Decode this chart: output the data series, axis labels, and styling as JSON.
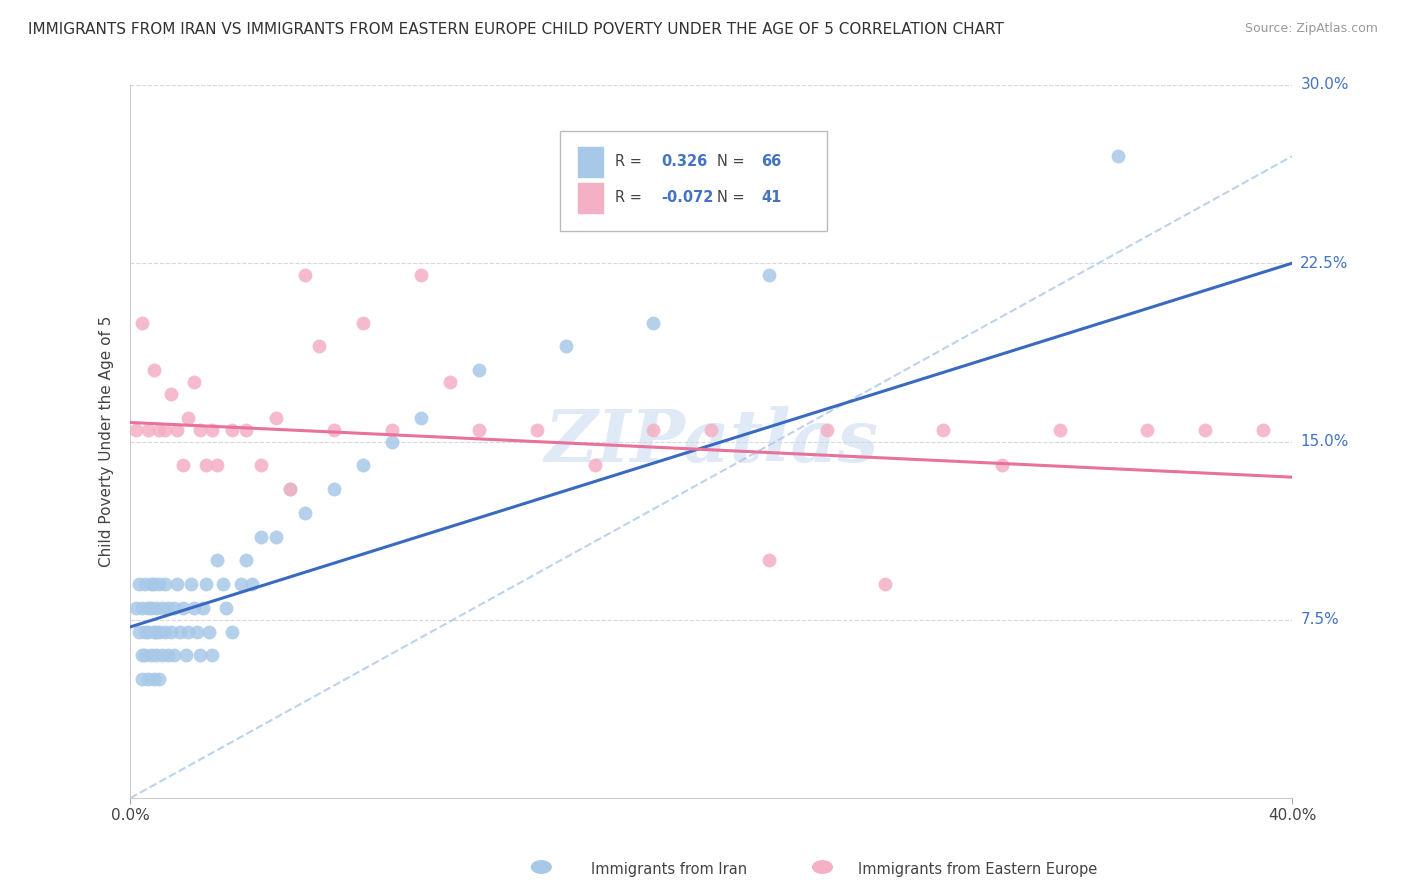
{
  "title": "IMMIGRANTS FROM IRAN VS IMMIGRANTS FROM EASTERN EUROPE CHILD POVERTY UNDER THE AGE OF 5 CORRELATION CHART",
  "source": "Source: ZipAtlas.com",
  "ylabel": "Child Poverty Under the Age of 5",
  "xlabel_iran": "Immigrants from Iran",
  "xlabel_ee": "Immigrants from Eastern Europe",
  "xmin": 0.0,
  "xmax": 0.4,
  "ymin": 0.0,
  "ymax": 0.3,
  "yticks": [
    0.0,
    0.075,
    0.15,
    0.225,
    0.3
  ],
  "ytick_labels": [
    "",
    "7.5%",
    "15.0%",
    "22.5%",
    "30.0%"
  ],
  "xtick_labels": [
    "0.0%",
    "40.0%"
  ],
  "R_iran": 0.326,
  "N_iran": 66,
  "R_ee": -0.072,
  "N_ee": 41,
  "color_iran": "#a8c8e8",
  "color_ee": "#f4b0c4",
  "line_iran": "#3a6abf",
  "line_ee": "#e8729a",
  "line_dashed": "#aac8e8",
  "watermark": "ZIPatlas",
  "background_color": "#ffffff",
  "grid_color": "#d8d8d8",
  "iran_x": [
    0.002,
    0.003,
    0.003,
    0.004,
    0.004,
    0.004,
    0.005,
    0.005,
    0.005,
    0.006,
    0.006,
    0.006,
    0.007,
    0.007,
    0.007,
    0.008,
    0.008,
    0.008,
    0.009,
    0.009,
    0.009,
    0.01,
    0.01,
    0.01,
    0.011,
    0.011,
    0.012,
    0.012,
    0.013,
    0.013,
    0.014,
    0.015,
    0.015,
    0.016,
    0.017,
    0.018,
    0.019,
    0.02,
    0.021,
    0.022,
    0.023,
    0.024,
    0.025,
    0.026,
    0.027,
    0.028,
    0.03,
    0.032,
    0.033,
    0.035,
    0.038,
    0.04,
    0.042,
    0.045,
    0.05,
    0.055,
    0.06,
    0.07,
    0.08,
    0.09,
    0.1,
    0.12,
    0.15,
    0.18,
    0.22,
    0.34
  ],
  "iran_y": [
    0.08,
    0.07,
    0.09,
    0.06,
    0.08,
    0.05,
    0.07,
    0.09,
    0.06,
    0.08,
    0.07,
    0.05,
    0.09,
    0.06,
    0.08,
    0.07,
    0.09,
    0.05,
    0.08,
    0.07,
    0.06,
    0.09,
    0.07,
    0.05,
    0.08,
    0.06,
    0.07,
    0.09,
    0.06,
    0.08,
    0.07,
    0.08,
    0.06,
    0.09,
    0.07,
    0.08,
    0.06,
    0.07,
    0.09,
    0.08,
    0.07,
    0.06,
    0.08,
    0.09,
    0.07,
    0.06,
    0.1,
    0.09,
    0.08,
    0.07,
    0.09,
    0.1,
    0.09,
    0.11,
    0.11,
    0.13,
    0.12,
    0.13,
    0.14,
    0.15,
    0.16,
    0.18,
    0.19,
    0.2,
    0.22,
    0.27
  ],
  "ee_x": [
    0.002,
    0.004,
    0.006,
    0.008,
    0.01,
    0.012,
    0.014,
    0.016,
    0.018,
    0.02,
    0.022,
    0.024,
    0.026,
    0.028,
    0.03,
    0.035,
    0.04,
    0.045,
    0.05,
    0.055,
    0.06,
    0.065,
    0.07,
    0.08,
    0.09,
    0.1,
    0.11,
    0.12,
    0.14,
    0.16,
    0.18,
    0.2,
    0.22,
    0.24,
    0.26,
    0.28,
    0.3,
    0.32,
    0.35,
    0.37,
    0.39
  ],
  "ee_y": [
    0.155,
    0.2,
    0.155,
    0.18,
    0.155,
    0.155,
    0.17,
    0.155,
    0.14,
    0.16,
    0.175,
    0.155,
    0.14,
    0.155,
    0.14,
    0.155,
    0.155,
    0.14,
    0.16,
    0.13,
    0.22,
    0.19,
    0.155,
    0.2,
    0.155,
    0.22,
    0.175,
    0.155,
    0.155,
    0.14,
    0.155,
    0.155,
    0.1,
    0.155,
    0.09,
    0.155,
    0.14,
    0.155,
    0.155,
    0.155,
    0.155
  ]
}
